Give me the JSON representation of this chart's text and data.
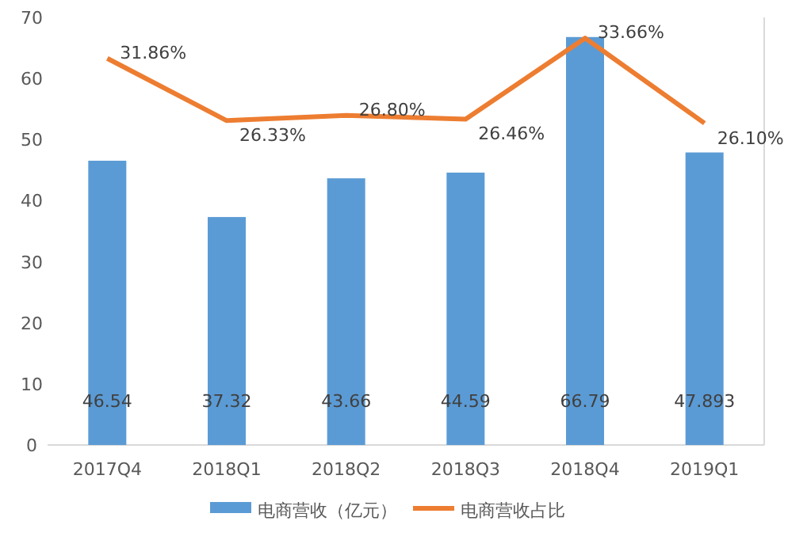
{
  "chart_data": {
    "type": "bar",
    "categories": [
      "2017Q4",
      "2018Q1",
      "2018Q2",
      "2018Q3",
      "2018Q4",
      "2019Q1"
    ],
    "ylim": [
      0,
      70
    ],
    "yticks": [
      0,
      10,
      20,
      30,
      40,
      50,
      60,
      70
    ],
    "y2lim": [
      -2.5,
      35.5
    ],
    "legend": "bottom",
    "grid": false,
    "series": [
      {
        "name": "电商营收（亿元）",
        "color": "#5b9bd5",
        "values": [
          46.54,
          37.32,
          43.66,
          44.59,
          66.79,
          47.893
        ],
        "value_labels": [
          "46.54",
          "37.32",
          "43.66",
          "44.59",
          "66.79",
          "47.893"
        ]
      },
      {
        "name": "电商营收占比",
        "type": "line",
        "axis": "y2",
        "color": "#ed7d31",
        "values": [
          31.86,
          26.33,
          26.8,
          26.46,
          33.66,
          26.1
        ],
        "value_labels": [
          "31.86%",
          "26.33%",
          "26.80%",
          "26.46%",
          "33.66%",
          "26.10%"
        ]
      }
    ]
  }
}
